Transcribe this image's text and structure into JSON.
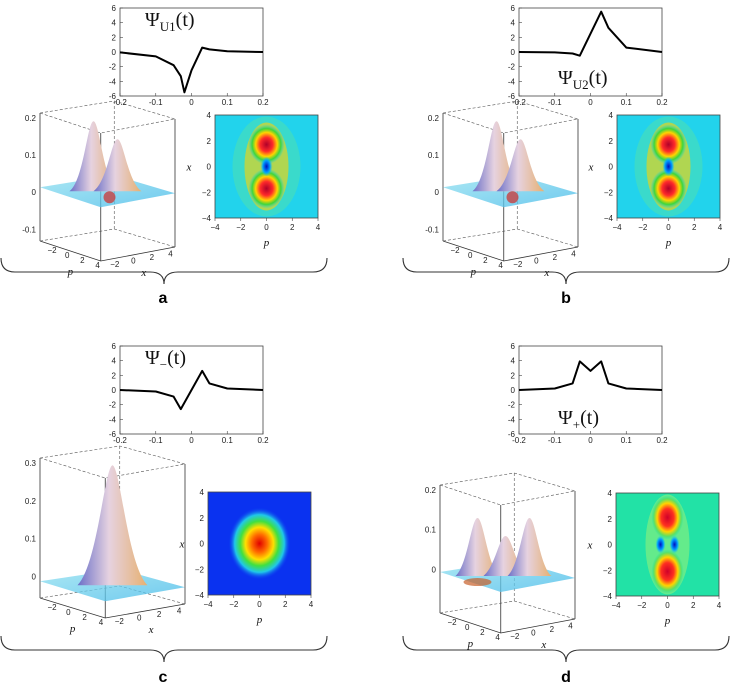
{
  "panels": [
    {
      "id": "a",
      "label": "a",
      "title_main": "Ψ",
      "title_sub": "U1",
      "title_arg": "(t)",
      "curve": "U1"
    },
    {
      "id": "b",
      "label": "b",
      "title_main": "Ψ",
      "title_sub": "U2",
      "title_arg": "(t)",
      "curve": "U2"
    },
    {
      "id": "c",
      "label": "c",
      "title_main": "Ψ",
      "title_sub": "−",
      "title_arg": "(t)",
      "curve": "minus"
    },
    {
      "id": "d",
      "label": "d",
      "title_main": "Ψ",
      "title_sub": "+",
      "title_arg": "(t)",
      "curve": "plus"
    }
  ],
  "line_plot": {
    "x_ticks": [
      "-0.2",
      "-0.1",
      "0",
      "0.1",
      "0.2"
    ],
    "y_ticks": [
      "6",
      "4",
      "2",
      "0",
      "-2",
      "-4",
      "-6"
    ]
  },
  "surface3d": {
    "z_ticks_ab": [
      "0.2",
      "0.1",
      "0",
      "-0.1"
    ],
    "z_ticks_c": [
      "0.3",
      "0.2",
      "0.1",
      "0"
    ],
    "z_ticks_d": [
      "0.2",
      "0.1",
      "0"
    ],
    "p_ticks": [
      "−2",
      "0",
      "2",
      "4"
    ],
    "x_ticks": [
      "−2",
      "0",
      "2",
      "4"
    ],
    "p_label": "p",
    "x_label": "x"
  },
  "density_plot": {
    "ticks": [
      "−4",
      "−2",
      "0",
      "2",
      "4"
    ],
    "x_axis_label": "p",
    "y_axis_label": "x"
  },
  "chart_data": [
    {
      "type": "line",
      "title": "ΨU1(t)",
      "xlim": [
        -0.2,
        0.2
      ],
      "ylim": [
        -6,
        6
      ],
      "x": [
        -0.2,
        -0.1,
        -0.05,
        -0.03,
        -0.02,
        0.0,
        0.03,
        0.05,
        0.1,
        0.2
      ],
      "y": [
        -0.05,
        -0.6,
        -1.8,
        -3.3,
        -5.5,
        -2.5,
        0.6,
        0.35,
        0.1,
        0.0
      ]
    },
    {
      "type": "line",
      "title": "ΨU2(t)",
      "xlim": [
        -0.2,
        0.2
      ],
      "ylim": [
        -6,
        6
      ],
      "x": [
        -0.2,
        -0.1,
        -0.05,
        -0.03,
        0.0,
        0.03,
        0.05,
        0.1,
        0.2
      ],
      "y": [
        0.0,
        -0.05,
        -0.2,
        -0.5,
        2.5,
        5.5,
        3.3,
        0.6,
        0.0
      ]
    },
    {
      "type": "line",
      "title": "Ψ−(t)",
      "xlim": [
        -0.2,
        0.2
      ],
      "ylim": [
        -6,
        6
      ],
      "x": [
        -0.2,
        -0.1,
        -0.05,
        -0.03,
        0.0,
        0.03,
        0.05,
        0.1,
        0.2
      ],
      "y": [
        0.0,
        -0.2,
        -0.9,
        -2.6,
        0.0,
        2.6,
        0.9,
        0.2,
        0.0
      ]
    },
    {
      "type": "line",
      "title": "Ψ+(t)",
      "xlim": [
        -0.2,
        0.2
      ],
      "ylim": [
        -6,
        6
      ],
      "x": [
        -0.2,
        -0.1,
        -0.05,
        -0.03,
        0.0,
        0.03,
        0.05,
        0.1,
        0.2
      ],
      "y": [
        0.0,
        0.2,
        0.9,
        3.9,
        2.6,
        3.9,
        0.9,
        0.2,
        0.0
      ]
    }
  ]
}
